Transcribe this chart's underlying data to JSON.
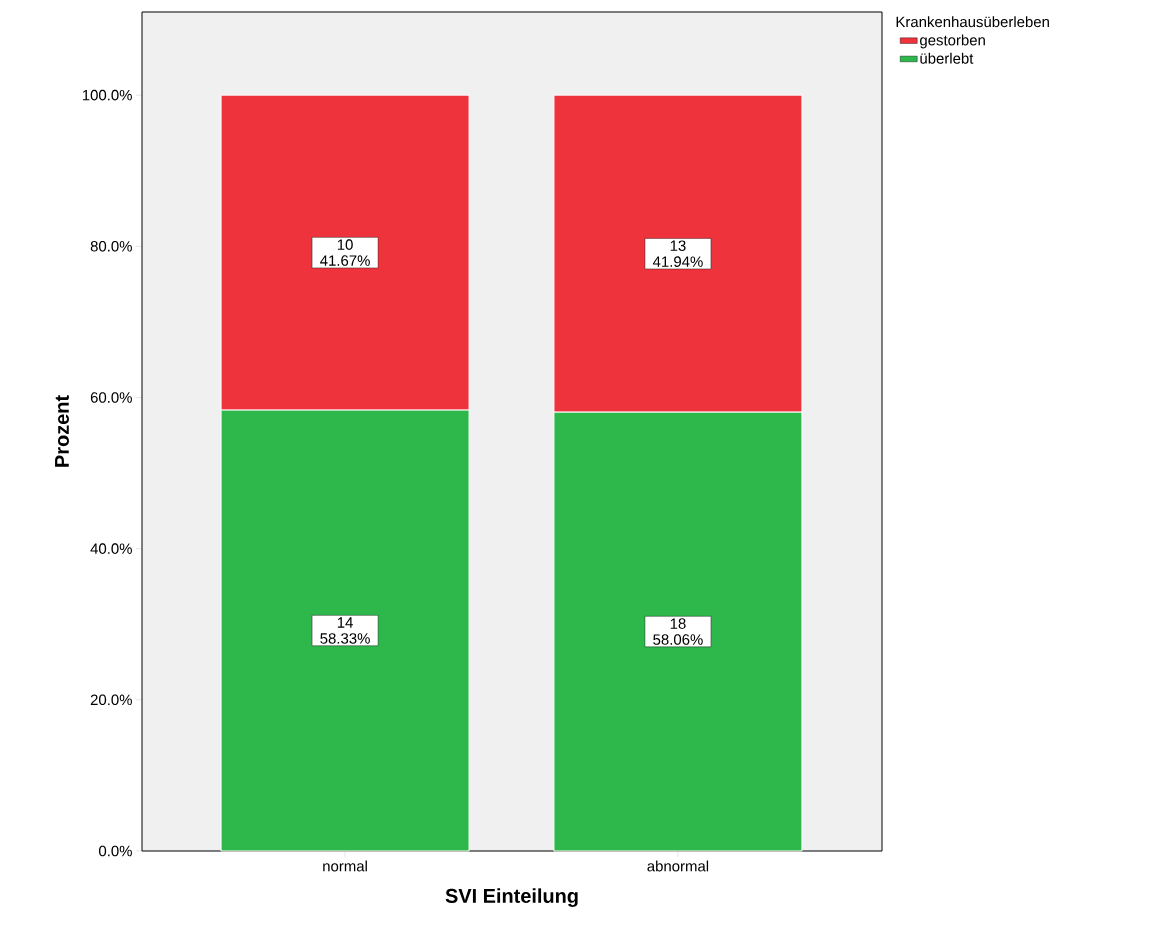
{
  "chart_data": {
    "type": "bar",
    "stacked": true,
    "xlabel": "SVI Einteilung",
    "ylabel": "Prozent",
    "legend_title": "Krankenhausüberleben",
    "legend": "top right",
    "categories": [
      "normal",
      "abnormal"
    ],
    "series": [
      {
        "name": "überlebt",
        "color": "#2eb84b",
        "values": [
          58.33,
          58.06
        ],
        "value_labels": [
          "14 58.33%",
          "18 58.06%"
        ]
      },
      {
        "name": "gestorben",
        "color": "#ef333c",
        "values": [
          41.67,
          41.94
        ],
        "value_labels": [
          "10 41.67%",
          "13 41.94%"
        ]
      }
    ],
    "ylim": [
      0,
      111
    ],
    "yticks": [
      {
        "value": 0,
        "label": "0.0%"
      },
      {
        "value": 20,
        "label": "20.0%"
      },
      {
        "value": 40,
        "label": "40.0%"
      },
      {
        "value": 60,
        "label": "60.0%"
      },
      {
        "value": 80,
        "label": "80.0%"
      },
      {
        "value": 100,
        "label": "100.0%"
      }
    ]
  }
}
